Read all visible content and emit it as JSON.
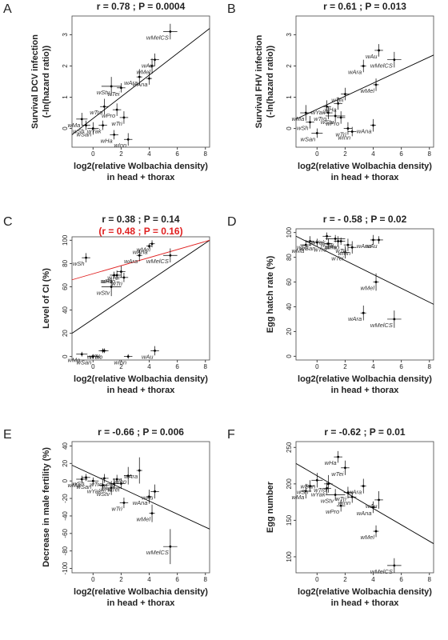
{
  "chart_data": [
    {
      "type": "scatter",
      "panel": "A",
      "title": "r = 0.78 ; P = 0.0004",
      "color": "#000000",
      "xlabel": [
        "log2(relative Wolbachia density)",
        "in head + thorax"
      ],
      "ylabel": [
        "Survival DCV infection",
        "(-ln(hazard ratio))"
      ],
      "labels": [
        "wMelCS",
        "wMel",
        "wAu",
        "wAra",
        "wAna",
        "wStv",
        "wTei",
        "wTro",
        "wPro",
        "wTri",
        "wHa",
        "wYak",
        "wSan",
        "wInn",
        "wMa",
        "wSh"
      ],
      "x": [
        5.5,
        4.2,
        4.4,
        3.3,
        4.0,
        1.3,
        2.0,
        0.8,
        1.7,
        2.2,
        1.5,
        0.7,
        0.0,
        2.5,
        -0.8,
        -0.5
      ],
      "x_err": [
        0.5,
        0.2,
        0.3,
        0.2,
        0.2,
        0.7,
        0.3,
        0.3,
        0.3,
        0.3,
        0.3,
        0.3,
        0.4,
        0.3,
        0.4,
        0.3
      ],
      "y": [
        3.1,
        2.0,
        2.2,
        1.65,
        1.6,
        1.35,
        1.3,
        0.7,
        0.6,
        0.35,
        -0.2,
        0.1,
        0.0,
        -0.35,
        0.3,
        0.1
      ],
      "y_err": [
        0.25,
        0.25,
        0.2,
        0.25,
        0.2,
        0.3,
        0.15,
        0.25,
        0.2,
        0.2,
        0.15,
        0.15,
        0.2,
        0.2,
        0.2,
        0.15
      ],
      "xlim": [
        -1.5,
        8.3
      ],
      "xticks": [
        0,
        2,
        4,
        6,
        8
      ],
      "ylim": [
        -0.6,
        3.6
      ],
      "yticks": [
        0,
        1,
        2,
        3
      ],
      "fit_lines": [
        {
          "color": "#000000",
          "x": [
            -1.5,
            8.3
          ],
          "y": [
            -0.2,
            3.2
          ]
        }
      ]
    },
    {
      "type": "scatter",
      "panel": "B",
      "title": "r = 0.61 ; P = 0.013",
      "color": "#000000",
      "xlabel": [
        "log2(relative Wolbachia density)",
        "in head + thorax"
      ],
      "ylabel": [
        "Survival FHV infection",
        "(-ln(hazard ratio))"
      ],
      "labels": [
        "wMelCS",
        "wMel",
        "wAu",
        "wAra",
        "wAna",
        "wStv",
        "wTei",
        "wTro",
        "wPro",
        "wTri",
        "wHa",
        "wYak",
        "wSan",
        "wInn",
        "wMa",
        "wSh"
      ],
      "x": [
        5.5,
        4.2,
        4.4,
        3.3,
        4.0,
        1.3,
        2.0,
        0.8,
        1.7,
        2.2,
        1.5,
        0.7,
        0.0,
        2.5,
        -0.8,
        -0.5
      ],
      "x_err": [
        0.5,
        0.2,
        0.3,
        0.2,
        0.2,
        0.7,
        0.3,
        0.3,
        0.3,
        0.3,
        0.3,
        0.3,
        0.4,
        0.3,
        0.4,
        0.3
      ],
      "y": [
        2.2,
        1.4,
        2.5,
        2.0,
        0.1,
        0.4,
        1.1,
        0.5,
        0.35,
        0.0,
        0.8,
        0.7,
        -0.15,
        -0.1,
        0.5,
        0.2
      ],
      "y_err": [
        0.25,
        0.2,
        0.2,
        0.2,
        0.2,
        0.2,
        0.2,
        0.2,
        0.2,
        0.2,
        0.2,
        0.2,
        0.15,
        0.15,
        0.25,
        0.2
      ],
      "xlim": [
        -1.5,
        8.3
      ],
      "xticks": [
        0,
        2,
        4,
        6,
        8
      ],
      "ylim": [
        -0.6,
        3.6
      ],
      "yticks": [
        0,
        1,
        2,
        3
      ],
      "fit_lines": [
        {
          "color": "#000000",
          "x": [
            -1.5,
            8.3
          ],
          "y": [
            0.3,
            2.35
          ]
        }
      ]
    },
    {
      "type": "scatter",
      "panel": "C",
      "title": "r = 0.38 ; P = 0.14",
      "subtitle": "(r = 0.48 ; P = 0.16)",
      "subtitle_color": "#e02020",
      "color": "#000000",
      "xlabel": [
        "log2(relative Wolbachia density)",
        "in head + thorax"
      ],
      "ylabel": [
        "Level of CI (%)"
      ],
      "labels": [
        "wMelCS",
        "wMel",
        "wAu",
        "wAra",
        "wAna",
        "wStv",
        "wTei",
        "wTro",
        "wPro",
        "wTri",
        "wHa",
        "wYak",
        "wSan",
        "wInn",
        "wMa",
        "wSh"
      ],
      "x": [
        5.5,
        4.2,
        4.4,
        3.3,
        4.0,
        1.3,
        2.0,
        0.8,
        1.7,
        2.2,
        1.5,
        0.7,
        0.0,
        2.5,
        -0.8,
        -0.5
      ],
      "x_err": [
        0.5,
        0.2,
        0.3,
        0.2,
        0.2,
        0.7,
        0.3,
        0.3,
        0.3,
        0.3,
        0.3,
        0.3,
        0.4,
        0.3,
        0.4,
        0.3
      ],
      "y": [
        87,
        97,
        5,
        87,
        95,
        60,
        73,
        5,
        70,
        68,
        70,
        5,
        0,
        0,
        2,
        85
      ],
      "y_err": [
        6,
        3,
        4,
        5,
        2,
        8,
        5,
        2,
        4,
        4,
        3,
        2,
        2,
        2,
        2,
        4
      ],
      "xlim": [
        -1.5,
        8.3
      ],
      "xticks": [
        0,
        2,
        4,
        6,
        8
      ],
      "ylim": [
        -3,
        103
      ],
      "yticks": [
        0,
        20,
        40,
        60,
        80,
        100
      ],
      "fit_lines": [
        {
          "color": "#000000",
          "x": [
            -1.5,
            8.3
          ],
          "y": [
            20,
            100
          ]
        },
        {
          "color": "#e02020",
          "x": [
            -1.5,
            8.3
          ],
          "y": [
            66,
            100
          ]
        }
      ]
    },
    {
      "type": "scatter",
      "panel": "D",
      "title": "r = - 0.58 ; P = 0.02",
      "color": "#000000",
      "xlabel": [
        "log2(relative Wolbachia density)",
        "in head + thorax"
      ],
      "ylabel": [
        "Egg hatch rate (%)"
      ],
      "labels": [
        "wMelCS",
        "wMel",
        "wAu",
        "wAra",
        "wAna",
        "wStv",
        "wTei",
        "wTro",
        "wPro",
        "wTri",
        "wHa",
        "wYak",
        "wSan",
        "wInn",
        "wMa",
        "wSh"
      ],
      "x": [
        5.5,
        4.2,
        4.4,
        3.3,
        4.0,
        1.3,
        2.0,
        0.8,
        1.7,
        2.2,
        1.5,
        0.7,
        0.0,
        2.5,
        -0.8,
        -0.5
      ],
      "x_err": [
        0.5,
        0.2,
        0.3,
        0.2,
        0.2,
        0.7,
        0.3,
        0.3,
        0.3,
        0.3,
        0.3,
        0.3,
        0.4,
        0.3,
        0.4,
        0.3
      ],
      "y": [
        30,
        60,
        94,
        35,
        94,
        95,
        84,
        91,
        93,
        90,
        93,
        97,
        92,
        88,
        90,
        93
      ],
      "y_err": [
        7,
        7,
        3,
        6,
        4,
        3,
        5,
        4,
        3,
        5,
        4,
        3,
        3,
        5,
        4,
        4
      ],
      "xlim": [
        -1.5,
        8.3
      ],
      "xticks": [
        0,
        2,
        4,
        6,
        8
      ],
      "ylim": [
        -3,
        103
      ],
      "yticks": [
        0,
        20,
        40,
        60,
        80,
        100
      ],
      "fit_lines": [
        {
          "color": "#000000",
          "x": [
            -1.5,
            8.3
          ],
          "y": [
            97,
            42
          ]
        }
      ]
    },
    {
      "type": "scatter",
      "panel": "E",
      "title": "r = -0.66 ; P = 0.006",
      "color": "#000000",
      "xlabel": [
        "log2(relative Wolbachia density)",
        "in head + thorax"
      ],
      "ylabel": [
        "Decrease in male fertility (%)"
      ],
      "labels": [
        "wMelCS",
        "wMel",
        "wAu",
        "wAra",
        "wAna",
        "wStv",
        "wTei",
        "wTro",
        "wPro",
        "wTri",
        "wHa",
        "wYak",
        "wSan",
        "wInn",
        "wMa",
        "wSh"
      ],
      "x": [
        5.5,
        4.2,
        4.4,
        3.3,
        4.0,
        1.3,
        2.0,
        0.8,
        1.7,
        2.2,
        1.5,
        0.7,
        0.0,
        2.5,
        -0.8,
        -0.5
      ],
      "x_err": [
        0.5,
        0.2,
        0.3,
        0.2,
        0.2,
        0.7,
        0.3,
        0.3,
        0.3,
        0.3,
        0.3,
        0.3,
        0.4,
        0.3,
        0.4,
        0.3
      ],
      "y": [
        -75,
        -37,
        -12,
        12,
        -18,
        -8,
        -3,
        3,
        2,
        -25,
        -3,
        -5,
        0,
        6,
        2,
        4
      ],
      "y_err": [
        20,
        10,
        8,
        15,
        8,
        8,
        6,
        5,
        5,
        6,
        6,
        6,
        4,
        10,
        4,
        4
      ],
      "xlim": [
        -1.5,
        8.3
      ],
      "xticks": [
        0,
        2,
        4,
        6,
        8
      ],
      "ylim": [
        -105,
        45
      ],
      "yticks": [
        -100,
        -80,
        -60,
        -40,
        -20,
        0,
        20,
        40
      ],
      "fit_lines": [
        {
          "color": "#000000",
          "x": [
            -1.5,
            8.3
          ],
          "y": [
            18,
            -55
          ]
        }
      ]
    },
    {
      "type": "scatter",
      "panel": "F",
      "title": "r = -0.62 ; P = 0.01",
      "color": "#000000",
      "xlabel": [
        "log2(relative Wolbachia density)",
        "in head + thorax"
      ],
      "ylabel": [
        "Egg number"
      ],
      "labels": [
        "wMelCS",
        "wMel",
        "wAu",
        "wAra",
        "wAna",
        "wStv",
        "wTei",
        "wTro",
        "wPro",
        "wTri",
        "wHa",
        "wYak",
        "wSan",
        "wInn",
        "wMa",
        "wSh"
      ],
      "x": [
        5.5,
        4.2,
        4.4,
        3.3,
        4.0,
        1.3,
        2.0,
        0.8,
        1.7,
        2.2,
        1.5,
        0.7,
        0.0,
        2.5,
        -0.8,
        -0.5
      ],
      "x_err": [
        0.5,
        0.2,
        0.3,
        0.2,
        0.2,
        0.7,
        0.3,
        0.3,
        0.3,
        0.3,
        0.3,
        0.3,
        0.4,
        0.3,
        0.4,
        0.3
      ],
      "y": [
        88,
        135,
        178,
        197,
        168,
        185,
        222,
        200,
        170,
        188,
        237,
        194,
        205,
        182,
        190,
        197
      ],
      "y_err": [
        10,
        8,
        12,
        10,
        8,
        8,
        10,
        12,
        8,
        8,
        8,
        8,
        10,
        8,
        10,
        8
      ],
      "xlim": [
        -1.5,
        8.3
      ],
      "xticks": [
        0,
        2,
        4,
        6,
        8
      ],
      "ylim": [
        78,
        258
      ],
      "yticks": [
        100,
        150,
        200,
        250
      ],
      "fit_lines": [
        {
          "color": "#000000",
          "x": [
            -1.5,
            8.3
          ],
          "y": [
            228,
            118
          ]
        }
      ]
    }
  ]
}
